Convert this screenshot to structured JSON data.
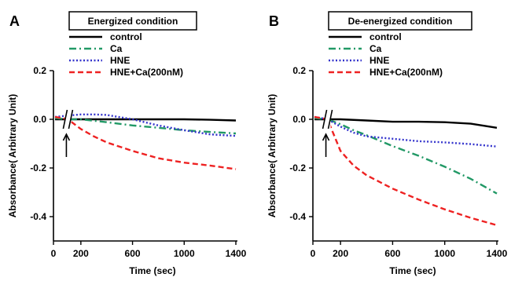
{
  "chart_data": [
    {
      "type": "line",
      "panel_label": "A",
      "title": "Energized condition",
      "xlabel": "Time (sec)",
      "ylabel": "Absorbance( Arbitrary  Unit)",
      "xlim": [
        0,
        1400
      ],
      "ylim": [
        -0.5,
        0.2
      ],
      "xticks": [
        0,
        200,
        600,
        1000,
        1400
      ],
      "yticks": [
        -0.4,
        -0.2,
        0.0,
        0.2
      ],
      "tick_labels_y": [
        "-0.4",
        "-0.2",
        "0.0",
        "0.2"
      ],
      "tick_labels_x": [
        "0",
        "200",
        "600",
        "1000",
        "1400"
      ],
      "axis_break": true,
      "legend_position": "top",
      "series": [
        {
          "name": "control",
          "color": "#000000",
          "style": "solid",
          "x": [
            0,
            100,
            200,
            400,
            600,
            800,
            1000,
            1200,
            1400
          ],
          "y": [
            0.0,
            0.0,
            0.0,
            0.0,
            0.0,
            0.0,
            0.0,
            -0.002,
            -0.005
          ]
        },
        {
          "name": "Ca",
          "color": "#229966",
          "style": "dashdot",
          "x": [
            0,
            100,
            200,
            400,
            600,
            800,
            1000,
            1200,
            1400
          ],
          "y": [
            0.005,
            0.0,
            0.0,
            -0.012,
            -0.025,
            -0.035,
            -0.045,
            -0.052,
            -0.058
          ]
        },
        {
          "name": "HNE",
          "color": "#3333cc",
          "style": "dotted",
          "x": [
            0,
            100,
            200,
            300,
            400,
            600,
            800,
            1000,
            1200,
            1400
          ],
          "y": [
            0.01,
            0.015,
            0.02,
            0.02,
            0.018,
            0.0,
            -0.025,
            -0.045,
            -0.062,
            -0.068
          ]
        },
        {
          "name": "HNE+Ca(200nM)",
          "color": "#ee2222",
          "style": "dashed",
          "x": [
            0,
            100,
            200,
            300,
            400,
            600,
            800,
            1000,
            1200,
            1400
          ],
          "y": [
            0.01,
            0.0,
            -0.04,
            -0.07,
            -0.095,
            -0.13,
            -0.16,
            -0.178,
            -0.19,
            -0.205
          ]
        }
      ]
    },
    {
      "type": "line",
      "panel_label": "B",
      "title": "De-energized condition",
      "xlabel": "Time (sec)",
      "ylabel": "Absorbance( Arbitrary  Unit)",
      "xlim": [
        0,
        1400
      ],
      "ylim": [
        -0.5,
        0.2
      ],
      "xticks": [
        0,
        200,
        600,
        1000,
        1400
      ],
      "yticks": [
        -0.4,
        -0.2,
        0.0,
        0.2
      ],
      "tick_labels_y": [
        "-0.4",
        "-0.2",
        "0.0",
        "0.2"
      ],
      "tick_labels_x": [
        "0",
        "200",
        "600",
        "1000",
        "1400"
      ],
      "axis_break": true,
      "legend_position": "top",
      "series": [
        {
          "name": "control",
          "color": "#000000",
          "style": "solid",
          "x": [
            0,
            100,
            200,
            400,
            600,
            800,
            1000,
            1200,
            1400
          ],
          "y": [
            0.0,
            0.0,
            0.0,
            -0.005,
            -0.01,
            -0.01,
            -0.012,
            -0.018,
            -0.035
          ]
        },
        {
          "name": "Ca",
          "color": "#229966",
          "style": "dashdot",
          "x": [
            0,
            100,
            200,
            300,
            400,
            600,
            800,
            1000,
            1200,
            1400
          ],
          "y": [
            0.005,
            0.0,
            -0.02,
            -0.045,
            -0.065,
            -0.11,
            -0.15,
            -0.195,
            -0.245,
            -0.305
          ]
        },
        {
          "name": "HNE",
          "color": "#3333cc",
          "style": "dotted",
          "x": [
            0,
            100,
            200,
            300,
            400,
            600,
            800,
            1000,
            1200,
            1400
          ],
          "y": [
            0.01,
            0.0,
            -0.03,
            -0.055,
            -0.07,
            -0.08,
            -0.09,
            -0.095,
            -0.102,
            -0.112
          ]
        },
        {
          "name": "HNE+Ca(200nM)",
          "color": "#ee2222",
          "style": "dashed",
          "x": [
            0,
            100,
            200,
            300,
            400,
            600,
            800,
            1000,
            1200,
            1400
          ],
          "y": [
            0.01,
            0.0,
            -0.13,
            -0.19,
            -0.23,
            -0.285,
            -0.33,
            -0.37,
            -0.405,
            -0.435
          ]
        }
      ]
    }
  ]
}
